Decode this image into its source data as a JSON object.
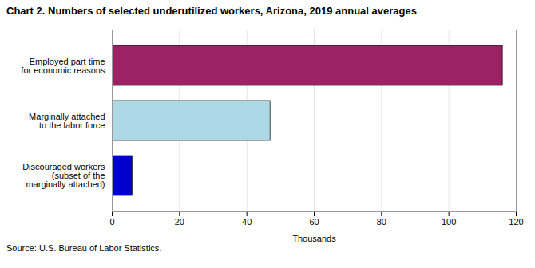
{
  "chart_data": {
    "type": "bar",
    "orientation": "horizontal",
    "title": "Chart 2. Numbers of selected underutilized workers, Arizona, 2019 annual averages",
    "categories": [
      "Discouraged workers\n(subset of the\nmarginally attached)",
      "Marginally attached\nto the labor force",
      "Employed part time\nfor economic reasons"
    ],
    "values": [
      6,
      47,
      116
    ],
    "colors": [
      "#0000CC",
      "#ADD8E6",
      "#9B2265"
    ],
    "xlabel": "Thousands",
    "xlim": [
      0,
      120
    ],
    "xticks": [
      0,
      20,
      40,
      60,
      80,
      100,
      120
    ],
    "grid": true,
    "source": "Source: U.S. Bureau of Labor Statistics."
  }
}
